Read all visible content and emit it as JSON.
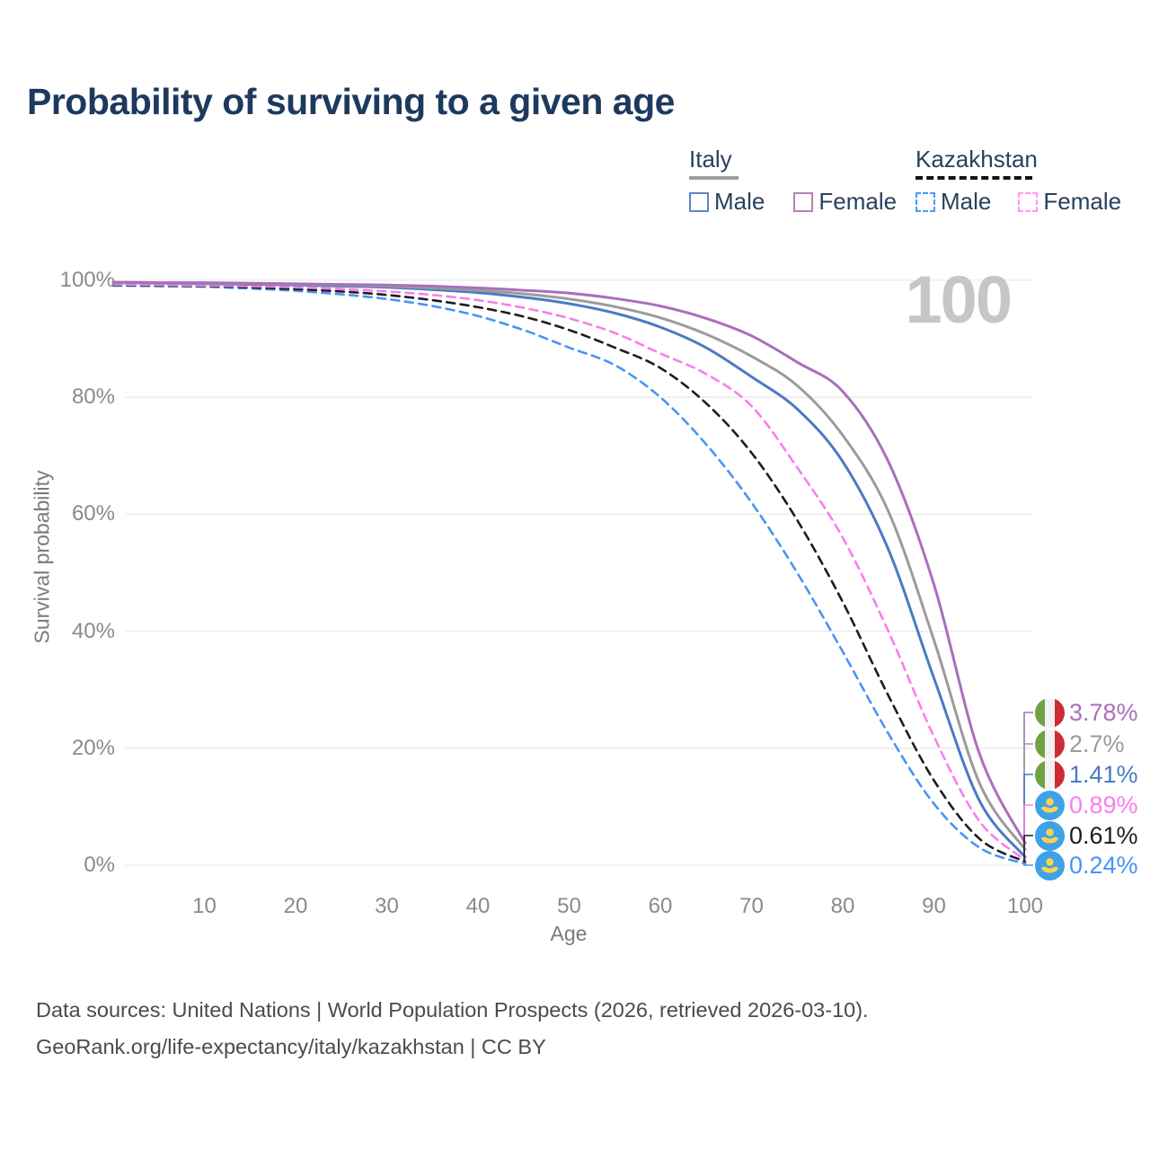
{
  "title": "Probability of surviving to a given age",
  "watermark_age": "100",
  "legend": {
    "italy": {
      "title": "Italy",
      "male": "Male",
      "female": "Female"
    },
    "kazakhstan": {
      "title": "Kazakhstan",
      "male": "Male",
      "female": "Female"
    }
  },
  "axes": {
    "y_title": "Survival probability",
    "x_title": "Age"
  },
  "footer": {
    "line1": "Data sources: United Nations | World Population Prospects (2026, retrieved 2026-03-10).",
    "line2": "GeoRank.org/life-expectancy/italy/kazakhstan | CC BY"
  },
  "colors": {
    "grid": "#e9e9e9",
    "title_text": "#1d3a5e",
    "tick_text": "#8a8a8a",
    "watermark": "#c6c6c6",
    "italy_underline": "#9e9e9e",
    "kazakhstan_underline": "#141414",
    "italy_flag": [
      "#70a145",
      "#f2f2f2",
      "#ce2b37"
    ],
    "kazakhstan_flag": [
      "#3fa1e8",
      "#fbd44a"
    ]
  },
  "chart_data": {
    "type": "line",
    "title": "Probability of surviving to a given age",
    "xlabel": "Age",
    "ylabel": "Survival probability",
    "x": [
      0,
      5,
      10,
      15,
      20,
      25,
      30,
      35,
      40,
      45,
      50,
      55,
      60,
      65,
      70,
      75,
      80,
      85,
      90,
      95,
      100
    ],
    "xlim": [
      0,
      100
    ],
    "ylim": [
      0,
      100
    ],
    "xticks": [
      "10",
      "20",
      "30",
      "40",
      "50",
      "60",
      "70",
      "80",
      "90",
      "100"
    ],
    "xtick_values": [
      10,
      20,
      30,
      40,
      50,
      60,
      70,
      80,
      90,
      100
    ],
    "yticks": [
      "100%",
      "80%",
      "60%",
      "40%",
      "20%",
      "0%"
    ],
    "ytick_values": [
      100,
      80,
      60,
      40,
      20,
      0
    ],
    "grid": true,
    "legend_position": "top-right",
    "hovered_age": 100,
    "series": [
      {
        "id": "italy-female",
        "country": "Italy",
        "label": "Female",
        "color": "#a96fbb",
        "dashed": false,
        "end_label": "3.78%",
        "values": [
          99.7,
          99.6,
          99.6,
          99.5,
          99.4,
          99.3,
          99.2,
          99.0,
          98.7,
          98.3,
          97.8,
          96.9,
          95.6,
          93.5,
          90.5,
          86.0,
          81.0,
          69.0,
          48.0,
          19.0,
          3.78
        ]
      },
      {
        "id": "italy-total",
        "country": "Italy",
        "label": "Total",
        "color": "#9b9b9b",
        "dashed": false,
        "end_label": "2.7%",
        "values": [
          99.6,
          99.5,
          99.5,
          99.4,
          99.3,
          99.2,
          99.0,
          98.7,
          98.3,
          97.7,
          96.8,
          95.5,
          93.6,
          90.8,
          87.0,
          82.0,
          73.5,
          60.5,
          38.5,
          14.0,
          2.7
        ]
      },
      {
        "id": "italy-male",
        "country": "Italy",
        "label": "Male",
        "color": "#4a7bc4",
        "dashed": false,
        "end_label": "1.41%",
        "values": [
          99.6,
          99.5,
          99.4,
          99.3,
          99.2,
          99.0,
          98.8,
          98.4,
          97.9,
          97.1,
          96.0,
          94.4,
          92.0,
          88.5,
          83.5,
          78.0,
          69.0,
          54.0,
          32.0,
          11.0,
          1.41
        ]
      },
      {
        "id": "kazakhstan-female",
        "country": "Kazakhstan",
        "label": "Female",
        "color": "#fb7deb",
        "dashed": true,
        "end_label": "0.89%",
        "values": [
          99.3,
          99.2,
          99.1,
          99.0,
          98.8,
          98.5,
          98.1,
          97.5,
          96.6,
          95.3,
          93.5,
          91.0,
          87.5,
          84.0,
          78.5,
          68.0,
          56.0,
          40.0,
          22.0,
          7.5,
          0.89
        ]
      },
      {
        "id": "kazakhstan-total",
        "country": "Kazakhstan",
        "label": "Total",
        "color": "#1d1d1d",
        "dashed": true,
        "end_label": "0.61%",
        "values": [
          99.2,
          99.1,
          99.0,
          98.8,
          98.5,
          98.1,
          97.5,
          96.6,
          95.4,
          93.8,
          91.5,
          88.5,
          85.0,
          79.0,
          70.5,
          59.0,
          45.0,
          29.0,
          14.5,
          4.5,
          0.61
        ]
      },
      {
        "id": "kazakhstan-male",
        "country": "Kazakhstan",
        "label": "Male",
        "color": "#4695f5",
        "dashed": true,
        "end_label": "0.24%",
        "values": [
          99.1,
          99.0,
          98.9,
          98.6,
          98.2,
          97.6,
          96.8,
          95.6,
          93.9,
          91.5,
          88.5,
          85.5,
          80.0,
          72.0,
          62.0,
          50.0,
          36.5,
          22.5,
          10.5,
          3.0,
          0.24
        ]
      }
    ]
  }
}
